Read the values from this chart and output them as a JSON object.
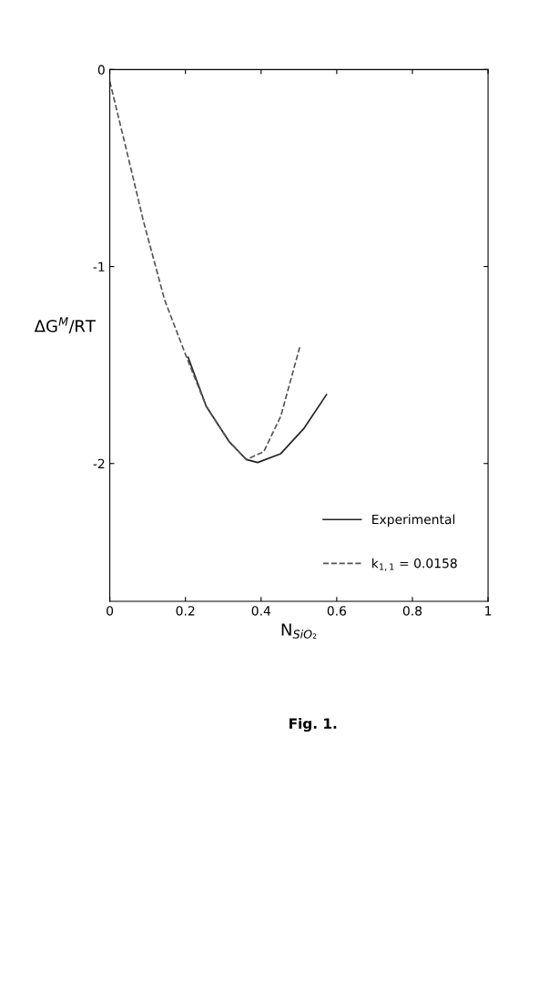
{
  "chart_data": {
    "type": "line",
    "xlabel": "N$_{SiO₂}$",
    "ylabel": "ΔG$^{M}$/RT",
    "annotations": [
      "Fig. 1."
    ],
    "xlim": [
      0,
      1
    ],
    "xticks": [
      0,
      0.2,
      0.4,
      0.6,
      0.8,
      1
    ],
    "ylim": [
      -2.7,
      0
    ],
    "yticks": [
      0,
      -1,
      -2
    ],
    "grid": false,
    "legend": "bottom right",
    "series": [
      {
        "name": "Experimental",
        "color": "#222222",
        "line_style": "solid",
        "x": [
          0.207,
          0.255,
          0.316,
          0.361,
          0.391,
          0.452,
          0.514,
          0.573
        ],
        "values": [
          -1.46,
          -1.71,
          -1.89,
          -1.98,
          -1.995,
          -1.95,
          -1.82,
          -1.65
        ]
      },
      {
        "name": "k$_{1,1}$ = 0.0158",
        "color": "#555555",
        "line_style": "dashed",
        "x": [
          0,
          0.043,
          0.089,
          0.145,
          0.207,
          0.255,
          0.316,
          0.361,
          0.407,
          0.452,
          0.482,
          0.502
        ],
        "values": [
          -0.06,
          -0.4,
          -0.77,
          -1.17,
          -1.48,
          -1.71,
          -1.89,
          -1.98,
          -1.94,
          -1.76,
          -1.55,
          -1.41
        ]
      }
    ]
  }
}
